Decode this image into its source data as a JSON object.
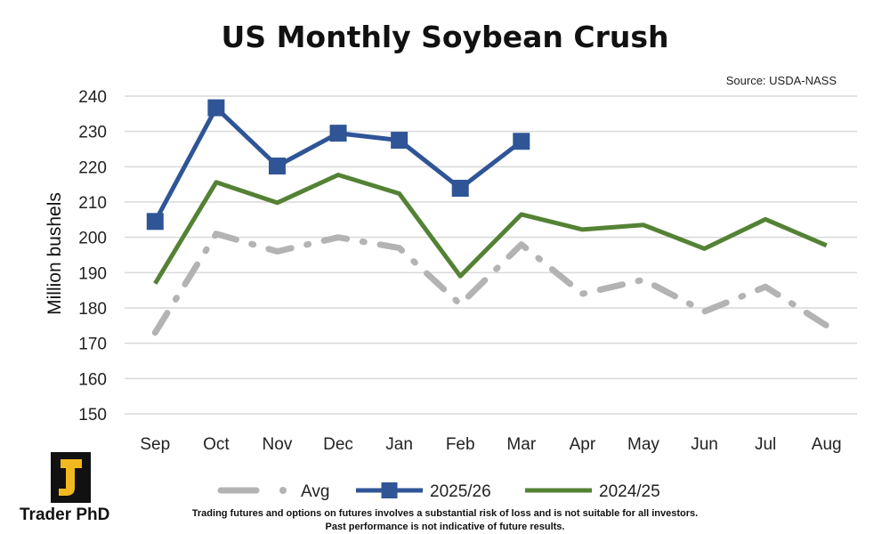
{
  "chart_data": {
    "type": "line",
    "title": "US Monthly Soybean Crush",
    "source": "Source: USDA-NASS",
    "ylabel": "Million bushels",
    "xlabel": "",
    "categories": [
      "Sep",
      "Oct",
      "Nov",
      "Dec",
      "Jan",
      "Feb",
      "Mar",
      "Apr",
      "May",
      "Jun",
      "Jul",
      "Aug"
    ],
    "ylim": [
      150,
      240
    ],
    "yticks": [
      150,
      160,
      170,
      180,
      190,
      200,
      210,
      220,
      230,
      240
    ],
    "grid": true,
    "legend_position": "bottom",
    "series": [
      {
        "name": "Avg",
        "style": "dash-dot",
        "color": "#b3b3b3",
        "values": [
          173,
          201,
          196,
          200,
          197,
          181,
          198,
          184,
          188,
          179,
          186,
          175
        ]
      },
      {
        "name": "2025/26",
        "style": "solid-square",
        "color": "#2f5597",
        "values": [
          204.5,
          236.7,
          220.2,
          229.5,
          227.5,
          213.9,
          227.2,
          null,
          null,
          null,
          null,
          null
        ]
      },
      {
        "name": "2024/25",
        "style": "solid",
        "color": "#548235",
        "values": [
          186.9,
          215.6,
          209.8,
          217.7,
          212.4,
          189,
          206.5,
          202.2,
          203.5,
          196.8,
          205.1,
          197.7
        ]
      }
    ]
  },
  "brand": {
    "name": "Trader PhD"
  },
  "disclaimer": {
    "line1": "Trading futures and options on futures involves a substantial risk of loss and is not suitable for all investors.",
    "line2": "Past performance is not indicative of future results."
  }
}
